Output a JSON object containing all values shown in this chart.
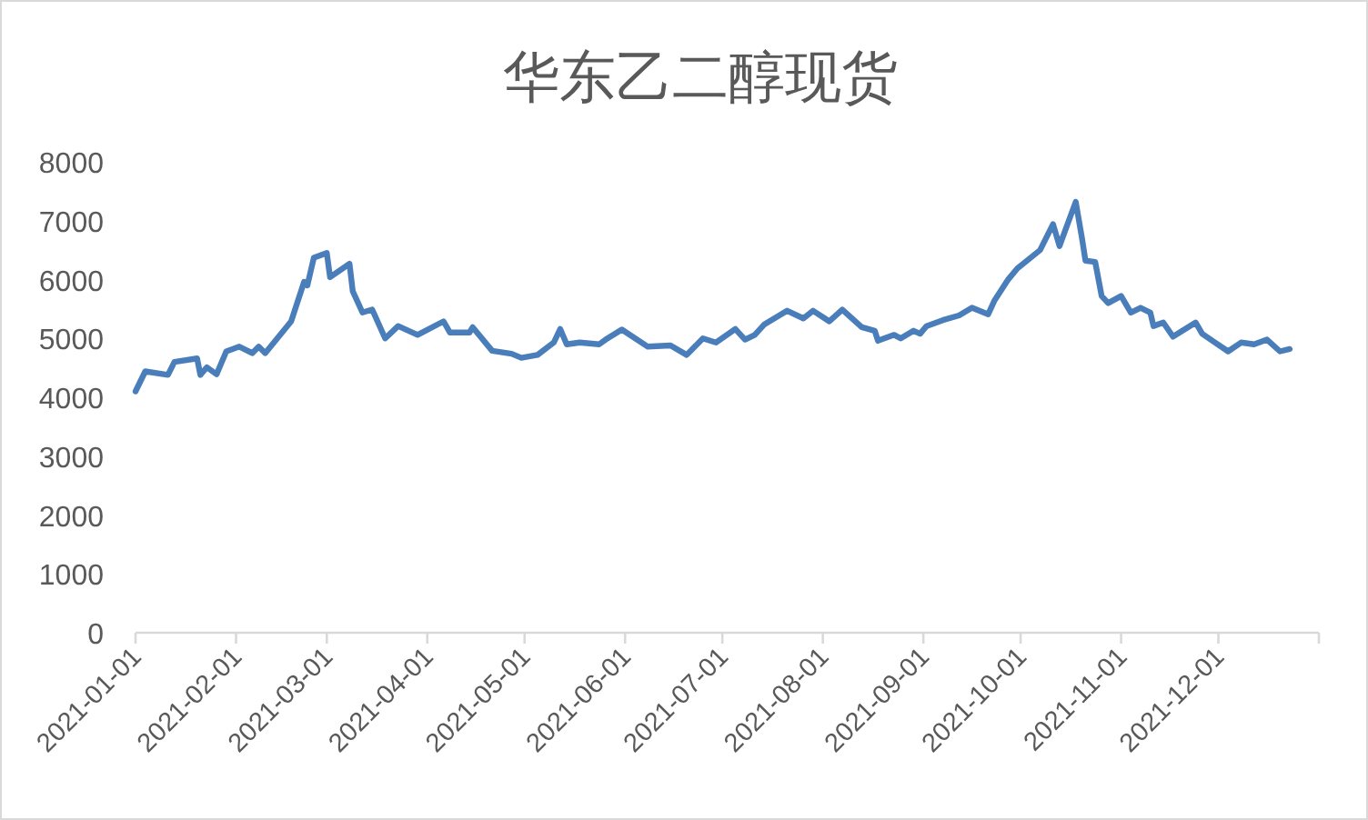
{
  "chart_data": {
    "type": "line",
    "title": "华东乙二醇现货",
    "series": [
      {
        "color": "#4a7ebb",
        "x": [
          "2021-01-01",
          "2021-01-04",
          "2021-01-11",
          "2021-01-13",
          "2021-01-20",
          "2021-01-21",
          "2021-01-23",
          "2021-01-26",
          "2021-01-29",
          "2021-02-02",
          "2021-02-06",
          "2021-02-08",
          "2021-02-10",
          "2021-02-18",
          "2021-02-22",
          "2021-02-23",
          "2021-02-25",
          "2021-03-01",
          "2021-03-02",
          "2021-03-08",
          "2021-03-09",
          "2021-03-12",
          "2021-03-15",
          "2021-03-19",
          "2021-03-23",
          "2021-03-29",
          "2021-04-06",
          "2021-04-08",
          "2021-04-14",
          "2021-04-15",
          "2021-04-21",
          "2021-04-27",
          "2021-04-30",
          "2021-05-05",
          "2021-05-10",
          "2021-05-12",
          "2021-05-14",
          "2021-05-18",
          "2021-05-24",
          "2021-05-26",
          "2021-05-31",
          "2021-06-08",
          "2021-06-15",
          "2021-06-20",
          "2021-06-25",
          "2021-06-29",
          "2021-07-05",
          "2021-07-08",
          "2021-07-11",
          "2021-07-14",
          "2021-07-21",
          "2021-07-26",
          "2021-07-29",
          "2021-08-03",
          "2021-08-07",
          "2021-08-13",
          "2021-08-17",
          "2021-08-18",
          "2021-08-23",
          "2021-08-25",
          "2021-08-29",
          "2021-08-31",
          "2021-09-02",
          "2021-09-07",
          "2021-09-12",
          "2021-09-16",
          "2021-09-21",
          "2021-09-23",
          "2021-09-27",
          "2021-09-30",
          "2021-10-07",
          "2021-10-11",
          "2021-10-13",
          "2021-10-18",
          "2021-10-20",
          "2021-10-21",
          "2021-10-24",
          "2021-10-26",
          "2021-10-28",
          "2021-11-01",
          "2021-11-04",
          "2021-11-07",
          "2021-11-10",
          "2021-11-11",
          "2021-11-14",
          "2021-11-17",
          "2021-11-24",
          "2021-11-26",
          "2021-11-30",
          "2021-12-04",
          "2021-12-08",
          "2021-12-12",
          "2021-12-16",
          "2021-12-20",
          "2021-12-23"
        ],
        "values": [
          4100,
          4440,
          4380,
          4600,
          4660,
          4380,
          4510,
          4390,
          4780,
          4860,
          4750,
          4860,
          4750,
          5290,
          5960,
          5900,
          6370,
          6450,
          6040,
          6270,
          5800,
          5440,
          5490,
          5000,
          5210,
          5060,
          5290,
          5100,
          5100,
          5190,
          4790,
          4740,
          4670,
          4720,
          4930,
          5160,
          4900,
          4930,
          4900,
          4980,
          5150,
          4860,
          4880,
          4720,
          5000,
          4930,
          5160,
          4980,
          5060,
          5240,
          5470,
          5340,
          5470,
          5290,
          5490,
          5190,
          5130,
          4960,
          5060,
          5000,
          5130,
          5080,
          5210,
          5310,
          5390,
          5520,
          5410,
          5650,
          5990,
          6190,
          6500,
          6940,
          6570,
          7320,
          6680,
          6320,
          6300,
          5720,
          5600,
          5720,
          5440,
          5520,
          5440,
          5210,
          5270,
          5030,
          5270,
          5080,
          4930,
          4780,
          4930,
          4900,
          4980,
          4780,
          4820
        ]
      }
    ],
    "xlim": [
      "2021-01-01",
      "2022-01-01"
    ],
    "xticks": [
      {
        "value": "2021-01-01",
        "label": "2021-01-01"
      },
      {
        "value": "2021-02-01",
        "label": "2021-02-01"
      },
      {
        "value": "2021-03-01",
        "label": "2021-03-01"
      },
      {
        "value": "2021-04-01",
        "label": "2021-04-01"
      },
      {
        "value": "2021-05-01",
        "label": "2021-05-01"
      },
      {
        "value": "2021-06-01",
        "label": "2021-06-01"
      },
      {
        "value": "2021-07-01",
        "label": "2021-07-01"
      },
      {
        "value": "2021-08-01",
        "label": "2021-08-01"
      },
      {
        "value": "2021-09-01",
        "label": "2021-09-01"
      },
      {
        "value": "2021-10-01",
        "label": "2021-10-01"
      },
      {
        "value": "2021-11-01",
        "label": "2021-11-01"
      },
      {
        "value": "2021-12-01",
        "label": "2021-12-01"
      },
      {
        "value": "2022-01-01",
        "label": null
      }
    ],
    "ylim": [
      0,
      8000
    ],
    "yticks": [
      0,
      1000,
      2000,
      3000,
      4000,
      5000,
      6000,
      7000,
      8000
    ],
    "grid": false,
    "marker": "none",
    "line_style": "solid"
  }
}
